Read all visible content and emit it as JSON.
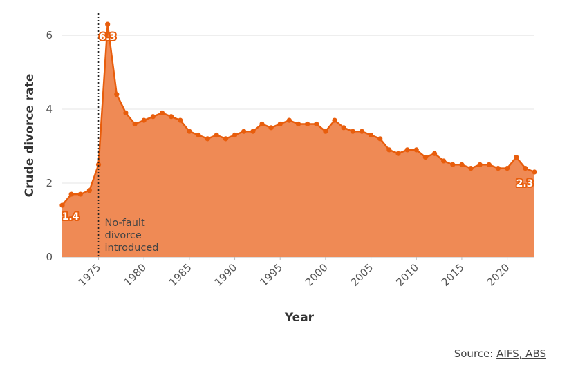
{
  "chart_data": {
    "type": "area",
    "title": "",
    "xlabel": "Year",
    "ylabel": "Crude divorce rate",
    "xlim": [
      1971,
      2023
    ],
    "ylim": [
      0,
      6.6
    ],
    "x_ticks": [
      1975,
      1980,
      1985,
      1990,
      1995,
      2000,
      2005,
      2010,
      2015,
      2020
    ],
    "y_ticks": [
      0,
      2,
      4,
      6
    ],
    "grid": "horizontal",
    "colors": {
      "line": "#e85d0c",
      "fill": "#ef8a55"
    },
    "series": [
      {
        "x": [
          1971,
          1972,
          1973,
          1974,
          1975,
          1976,
          1977,
          1978,
          1979,
          1980,
          1981,
          1982,
          1983,
          1984,
          1985,
          1986,
          1987,
          1988,
          1989,
          1990,
          1991,
          1992,
          1993,
          1994,
          1995,
          1996,
          1997,
          1998,
          1999,
          2000,
          2001,
          2002,
          2003,
          2004,
          2005,
          2006,
          2007,
          2008,
          2009,
          2010,
          2011,
          2012,
          2013,
          2014,
          2015,
          2016,
          2017,
          2018,
          2019,
          2020,
          2021,
          2022,
          2023
        ],
        "values": [
          1.4,
          1.7,
          1.7,
          1.8,
          2.5,
          6.3,
          4.4,
          3.9,
          3.6,
          3.7,
          3.8,
          3.9,
          3.8,
          3.7,
          3.4,
          3.3,
          3.2,
          3.3,
          3.2,
          3.3,
          3.4,
          3.4,
          3.6,
          3.5,
          3.6,
          3.7,
          3.6,
          3.6,
          3.6,
          3.4,
          3.7,
          3.5,
          3.4,
          3.4,
          3.3,
          3.2,
          2.9,
          2.8,
          2.9,
          2.9,
          2.7,
          2.8,
          2.6,
          2.5,
          2.5,
          2.4,
          2.5,
          2.5,
          2.4,
          2.4,
          2.7,
          2.4,
          2.3
        ]
      }
    ],
    "data_labels": [
      {
        "x": 1971,
        "y": 1.4,
        "text": "1.4"
      },
      {
        "x": 1976,
        "y": 6.3,
        "text": "6.3"
      },
      {
        "x": 2023,
        "y": 2.3,
        "text": "2.3"
      }
    ],
    "annotation": {
      "x": 1975,
      "style": "dotted-vertical-line",
      "lines": [
        "No-fault",
        "divorce",
        "introduced"
      ]
    }
  },
  "source": {
    "prefix": "Source: ",
    "link_text": "AIFS, ABS"
  }
}
